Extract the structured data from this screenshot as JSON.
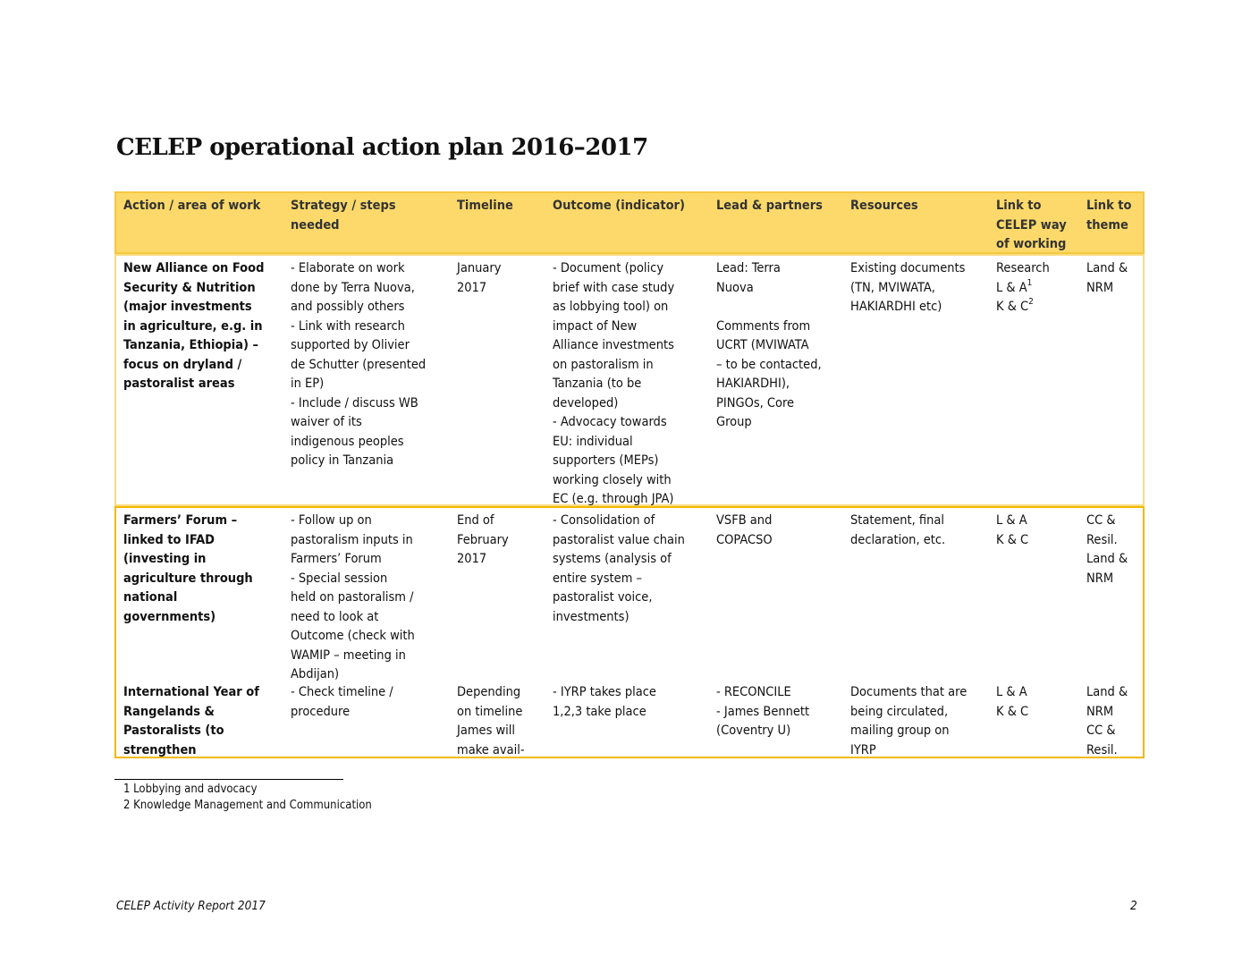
{
  "title": "CELEP operational action plan 2016–2017",
  "table": {
    "header": [
      [
        "Action / area of work"
      ],
      [
        "Strategy / steps",
        "needed"
      ],
      [
        "Timeline"
      ],
      [
        "Outcome (indicator)"
      ],
      [
        "Lead & partners"
      ],
      [
        "Resources"
      ],
      [
        "Link to",
        "CELEP way",
        "of working"
      ],
      [
        "Link to",
        "theme"
      ]
    ],
    "rows": [
      [
        [
          [
            "New Alliance on Food",
            "Security & Nutrition",
            "(major investments",
            "in agriculture, e.g. in",
            "Tanzania, Ethiopia) –",
            "focus on dryland /",
            "pastoralist areas"
          ]
        ],
        [
          [
            "- Elaborate on work",
            "done by Terra Nuova,",
            "and possibly others",
            "- Link with research",
            "supported by Olivier",
            "de Schutter (presented",
            "in EP)",
            "- Include / discuss WB",
            "waiver of its",
            "indigenous peoples",
            "policy in Tanzania"
          ]
        ],
        [
          [
            "January",
            "2017"
          ]
        ],
        [
          [
            "- Document (policy",
            "brief with case study",
            "as lobbying tool) on",
            "impact of New",
            "Alliance investments",
            "on pastoralism in",
            "Tanzania (to be",
            "developed)",
            "- Advocacy towards",
            "EU: individual",
            "supporters (MEPs)",
            "working closely with",
            "EC (e.g. through JPA)"
          ]
        ],
        [
          [
            "Lead: Terra",
            "Nuova"
          ],
          [
            "Comments from",
            "UCRT (MVIWATA",
            "– to be contacted,",
            "HAKIARDHI),",
            "PINGOs, Core",
            "Group"
          ]
        ],
        [
          [
            "Existing documents",
            "(TN, MVIWATA,",
            "HAKIARDHI etc)"
          ]
        ],
        [
          [
            "Research",
            {
              "text": "L & A",
              "sup": "1"
            },
            {
              "text": "K & C",
              "sup": "2"
            }
          ]
        ],
        [
          [
            "Land &",
            "NRM"
          ]
        ]
      ],
      [
        [
          [
            "Farmers’ Forum –",
            "linked to IFAD",
            "(investing in",
            "agriculture through",
            "national",
            "governments)"
          ]
        ],
        [
          [
            "- Follow up on",
            "pastoralism inputs in",
            "Farmers’ Forum",
            "- Special session",
            "held on pastoralism /",
            "need to look at",
            "Outcome (check with",
            "WAMIP – meeting in",
            "Abdijan)"
          ]
        ],
        [
          [
            "End of",
            "February",
            "2017"
          ]
        ],
        [
          [
            "- Consolidation of",
            "pastoralist value chain",
            "systems (analysis of",
            "entire system –",
            "pastoralist voice,",
            "investments)"
          ]
        ],
        [
          [
            "VSFB and",
            "COPACSO"
          ]
        ],
        [
          [
            "Statement, final",
            "declaration, etc."
          ]
        ],
        [
          [
            "L & A",
            "K & C"
          ]
        ],
        [
          [
            "CC &",
            "Resil.",
            "Land &",
            "NRM"
          ]
        ]
      ],
      [
        [
          [
            "International Year of",
            "Rangelands &",
            "Pastoralists (to",
            "strengthen"
          ]
        ],
        [
          [
            "- Check timeline /",
            "procedure"
          ]
        ],
        [
          [
            "Depending",
            "on timeline",
            "James will",
            "make avail-"
          ]
        ],
        [
          [
            "- IYRP takes place",
            "1,2,3 take place"
          ]
        ],
        [
          [
            "- RECONCILE",
            "- James Bennett",
            "(Coventry U)"
          ]
        ],
        [
          [
            "Documents that are",
            "being circulated,",
            "mailing group on",
            "IYRP"
          ]
        ],
        [
          [
            "L & A",
            "K & C"
          ]
        ],
        [
          [
            "Land &",
            "NRM",
            "CC &",
            "Resil."
          ]
        ]
      ]
    ]
  },
  "footnotes": [
    "1 Lobbying and advocacy",
    "2 Knowledge Management and Communication"
  ],
  "footer": {
    "left": "CELEP Activity Report 2017",
    "page": "2"
  }
}
